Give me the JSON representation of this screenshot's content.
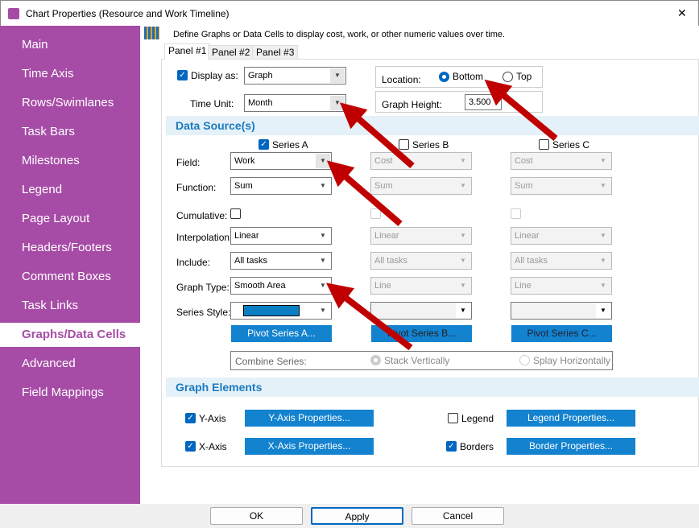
{
  "window": {
    "title": "Chart Properties (Resource and Work Timeline)",
    "close": "✕"
  },
  "sidebar": {
    "items": [
      {
        "label": "Main"
      },
      {
        "label": "Time Axis"
      },
      {
        "label": "Rows/Swimlanes"
      },
      {
        "label": "Task Bars"
      },
      {
        "label": "Milestones"
      },
      {
        "label": "Legend"
      },
      {
        "label": "Page Layout"
      },
      {
        "label": "Headers/Footers"
      },
      {
        "label": "Comment Boxes"
      },
      {
        "label": "Task Links"
      },
      {
        "label": "Graphs/Data Cells",
        "selected": true
      },
      {
        "label": "Advanced"
      },
      {
        "label": "Field Mappings"
      }
    ]
  },
  "main": {
    "description": "Define Graphs or Data Cells to display cost, work, or other numeric values over time.",
    "tabs": [
      {
        "label": "Panel #1"
      },
      {
        "label": "Panel #2"
      },
      {
        "label": "Panel #3"
      }
    ],
    "display_as": {
      "label": "Display as:",
      "value": "Graph",
      "checked": true
    },
    "time_unit": {
      "label": "Time Unit:",
      "value": "Month"
    },
    "location": {
      "label": "Location:",
      "bottom": "Bottom",
      "top": "Top",
      "selected": "Bottom"
    },
    "graph_height": {
      "label": "Graph Height:",
      "value": "3.500"
    },
    "data_source": {
      "title": "Data Source(s)",
      "row_labels": {
        "field": "Field:",
        "function": "Function:",
        "cumulative": "Cumulative:",
        "interpolation": "Interpolation:",
        "include": "Include:",
        "graph_type": "Graph Type:",
        "series_style": "Series Style:"
      },
      "series": [
        {
          "name": "Series A",
          "checked": true,
          "field": "Work",
          "function": "Sum",
          "interpolation": "Linear",
          "include": "All tasks",
          "graph_type": "Smooth Area",
          "pivot": "Pivot Series A...",
          "color": "#0a7fc4"
        },
        {
          "name": "Series B",
          "checked": false,
          "field": "Cost",
          "function": "Sum",
          "interpolation": "Linear",
          "include": "All tasks",
          "graph_type": "Line",
          "pivot": "Pivot Series B..."
        },
        {
          "name": "Series C",
          "checked": false,
          "field": "Cost",
          "function": "Sum",
          "interpolation": "Linear",
          "include": "All tasks",
          "graph_type": "Line",
          "pivot": "Pivot Series C..."
        }
      ],
      "combine": {
        "label": "Combine Series:",
        "stack": "Stack Vertically",
        "splay": "Splay Horizontally"
      }
    },
    "graph_elements": {
      "title": "Graph Elements",
      "y_axis": {
        "label": "Y-Axis",
        "checked": true,
        "button": "Y-Axis Properties..."
      },
      "x_axis": {
        "label": "X-Axis",
        "checked": true,
        "button": "X-Axis Properties..."
      },
      "legend": {
        "label": "Legend",
        "checked": false,
        "button": "Legend Properties..."
      },
      "borders": {
        "label": "Borders",
        "checked": true,
        "button": "Border Properties..."
      }
    }
  },
  "footer": {
    "ok": "OK",
    "apply": "Apply",
    "cancel": "Cancel"
  },
  "colors": {
    "sidebar": "#a64ca6",
    "accent": "#1382cf",
    "arrow": "#c00000"
  }
}
